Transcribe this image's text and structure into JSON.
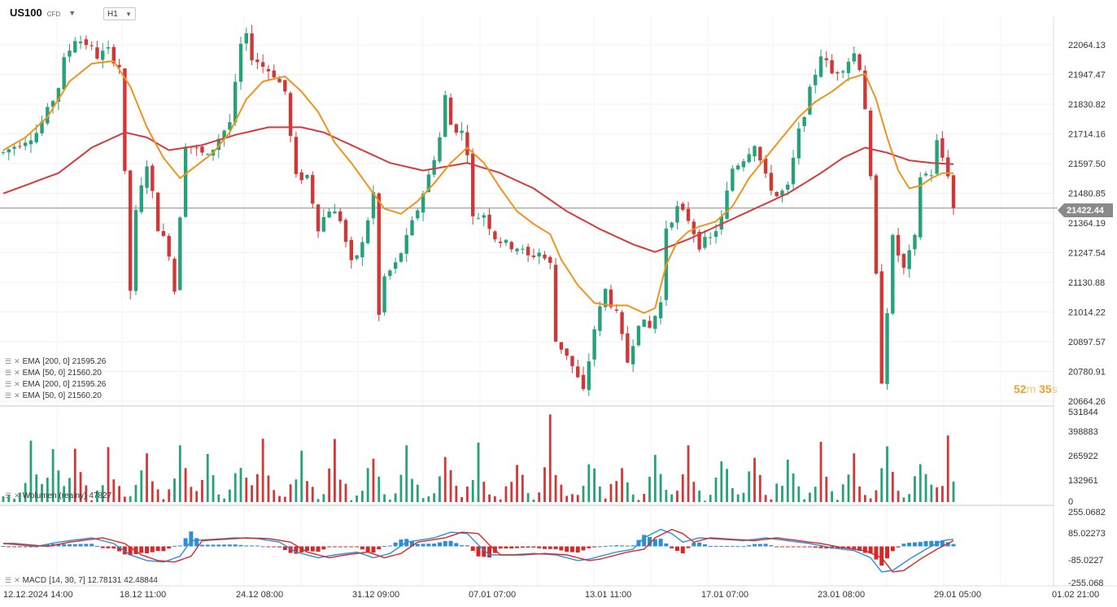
{
  "header": {
    "symbol": "US100",
    "symbol_type": "CFD",
    "timeframe": "H1"
  },
  "indicators": [
    {
      "label": "EMA",
      "params": "[200,  0]",
      "value": "21595.26"
    },
    {
      "label": "EMA",
      "params": "[50,  0]",
      "value": "21560.20"
    },
    {
      "label": "EMA",
      "params": "[200,  0]",
      "value": "21595.26"
    },
    {
      "label": "EMA",
      "params": "[50,  0]",
      "value": "21560.20"
    }
  ],
  "volume_legend": {
    "label": "Wolumen (realny)",
    "value": "47827"
  },
  "macd_legend": {
    "label": "MACD",
    "params": "[14, 30, 7]",
    "value1": "12.78131",
    "value2": "42.48844"
  },
  "timer": {
    "minutes": "52",
    "m": "m",
    "seconds": "35",
    "s": "s"
  },
  "current_price": "21422.44",
  "colors": {
    "up": "#26a17b",
    "down": "#d03838",
    "ema200": "#d63b3b",
    "ema50": "#f0931e",
    "macd_blue": "#2a8fd6",
    "macd_red": "#d62828"
  },
  "chart_data": {
    "type": "candlestick",
    "price_axis_ticks": [
      "22064.13",
      "21947.47",
      "21830.82",
      "21714.16",
      "21597.50",
      "21480.85",
      "21364.19",
      "21247.54",
      "21130.88",
      "21014.22",
      "20897.57",
      "20780.91",
      "20664.26"
    ],
    "volume_axis_ticks": [
      "531844",
      "398883",
      "265922",
      "132961",
      "0"
    ],
    "macd_axis_ticks": [
      "255.0682",
      "85.02273",
      "-85.0227",
      "-255.068"
    ],
    "time_axis_labels": [
      "12.12.2024  14:00",
      "18.12  11:00",
      "24.12  08:00",
      "31.12  09:00",
      "07.01  07:00",
      "13.01  11:00",
      "17.01  07:00",
      "23.01  08:00",
      "29.01  05:00",
      "01.02  21:00"
    ],
    "price_path": [
      [
        0,
        21640
      ],
      [
        3,
        21680
      ],
      [
        6,
        21720
      ],
      [
        8,
        21800
      ],
      [
        10,
        21900
      ],
      [
        11,
        22000
      ],
      [
        13,
        22090
      ],
      [
        15,
        22070
      ],
      [
        17,
        22020
      ],
      [
        19,
        22040
      ],
      [
        21,
        21980
      ],
      [
        22,
        21550
      ],
      [
        23,
        21100
      ],
      [
        24,
        21400
      ],
      [
        26,
        21600
      ],
      [
        28,
        21350
      ],
      [
        30,
        21250
      ],
      [
        31,
        21100
      ],
      [
        32,
        21400
      ],
      [
        33,
        21680
      ],
      [
        35,
        21650
      ],
      [
        37,
        21620
      ],
      [
        39,
        21700
      ],
      [
        41,
        21760
      ],
      [
        42,
        21900
      ],
      [
        43,
        22060
      ],
      [
        44,
        22090
      ],
      [
        45,
        22020
      ],
      [
        47,
        21980
      ],
      [
        49,
        21950
      ],
      [
        51,
        21880
      ],
      [
        52,
        21700
      ],
      [
        53,
        21540
      ],
      [
        55,
        21550
      ],
      [
        57,
        21350
      ],
      [
        59,
        21420
      ],
      [
        61,
        21380
      ],
      [
        63,
        21200
      ],
      [
        65,
        21280
      ],
      [
        67,
        21480
      ],
      [
        68,
        21000
      ],
      [
        69,
        21150
      ],
      [
        71,
        21200
      ],
      [
        73,
        21300
      ],
      [
        75,
        21420
      ],
      [
        77,
        21550
      ],
      [
        79,
        21700
      ],
      [
        80,
        21860
      ],
      [
        81,
        21750
      ],
      [
        83,
        21720
      ],
      [
        84,
        21650
      ],
      [
        85,
        21380
      ],
      [
        87,
        21400
      ],
      [
        89,
        21310
      ],
      [
        91,
        21280
      ],
      [
        93,
        21270
      ],
      [
        95,
        21230
      ],
      [
        97,
        21250
      ],
      [
        99,
        21200
      ],
      [
        100,
        20900
      ],
      [
        102,
        20850
      ],
      [
        104,
        20750
      ],
      [
        105,
        20700
      ],
      [
        107,
        20950
      ],
      [
        109,
        21100
      ],
      [
        111,
        21000
      ],
      [
        113,
        20820
      ],
      [
        115,
        20980
      ],
      [
        117,
        20950
      ],
      [
        119,
        21050
      ],
      [
        120,
        21350
      ],
      [
        122,
        21420
      ],
      [
        124,
        21380
      ],
      [
        126,
        21280
      ],
      [
        128,
        21300
      ],
      [
        130,
        21380
      ],
      [
        132,
        21580
      ],
      [
        134,
        21620
      ],
      [
        136,
        21680
      ],
      [
        138,
        21540
      ],
      [
        140,
        21470
      ],
      [
        142,
        21500
      ],
      [
        144,
        21720
      ],
      [
        146,
        21880
      ],
      [
        148,
        22030
      ],
      [
        150,
        21950
      ],
      [
        152,
        21980
      ],
      [
        154,
        22030
      ],
      [
        155,
        21980
      ],
      [
        156,
        21820
      ],
      [
        157,
        21530
      ],
      [
        158,
        21150
      ],
      [
        159,
        20750
      ],
      [
        161,
        21300
      ],
      [
        163,
        21180
      ],
      [
        165,
        21300
      ],
      [
        166,
        21550
      ],
      [
        168,
        21560
      ],
      [
        169,
        21680
      ],
      [
        171,
        21560
      ],
      [
        172,
        21422
      ]
    ],
    "ema50_path": [
      [
        0,
        21650
      ],
      [
        4,
        21700
      ],
      [
        8,
        21780
      ],
      [
        12,
        21920
      ],
      [
        16,
        21990
      ],
      [
        20,
        22000
      ],
      [
        23,
        21900
      ],
      [
        26,
        21740
      ],
      [
        29,
        21620
      ],
      [
        32,
        21540
      ],
      [
        35,
        21590
      ],
      [
        38,
        21640
      ],
      [
        41,
        21720
      ],
      [
        44,
        21850
      ],
      [
        47,
        21920
      ],
      [
        51,
        21940
      ],
      [
        54,
        21880
      ],
      [
        57,
        21800
      ],
      [
        60,
        21680
      ],
      [
        63,
        21600
      ],
      [
        66,
        21510
      ],
      [
        69,
        21420
      ],
      [
        72,
        21400
      ],
      [
        75,
        21450
      ],
      [
        78,
        21520
      ],
      [
        81,
        21600
      ],
      [
        84,
        21660
      ],
      [
        87,
        21600
      ],
      [
        90,
        21500
      ],
      [
        93,
        21410
      ],
      [
        96,
        21360
      ],
      [
        99,
        21320
      ],
      [
        101,
        21220
      ],
      [
        104,
        21120
      ],
      [
        107,
        21050
      ],
      [
        110,
        21040
      ],
      [
        113,
        21040
      ],
      [
        116,
        21010
      ],
      [
        118,
        21030
      ],
      [
        120,
        21200
      ],
      [
        122,
        21290
      ],
      [
        124,
        21330
      ],
      [
        126,
        21350
      ],
      [
        129,
        21370
      ],
      [
        132,
        21430
      ],
      [
        135,
        21540
      ],
      [
        138,
        21620
      ],
      [
        141,
        21700
      ],
      [
        144,
        21780
      ],
      [
        147,
        21840
      ],
      [
        150,
        21880
      ],
      [
        153,
        21930
      ],
      [
        156,
        21950
      ],
      [
        158,
        21850
      ],
      [
        160,
        21700
      ],
      [
        162,
        21570
      ],
      [
        164,
        21500
      ],
      [
        166,
        21510
      ],
      [
        168,
        21540
      ],
      [
        170,
        21560
      ],
      [
        172,
        21560
      ]
    ],
    "ema200_path": [
      [
        0,
        21480
      ],
      [
        10,
        21560
      ],
      [
        16,
        21660
      ],
      [
        22,
        21720
      ],
      [
        26,
        21700
      ],
      [
        30,
        21650
      ],
      [
        36,
        21670
      ],
      [
        42,
        21710
      ],
      [
        48,
        21740
      ],
      [
        54,
        21740
      ],
      [
        58,
        21720
      ],
      [
        64,
        21660
      ],
      [
        70,
        21600
      ],
      [
        76,
        21570
      ],
      [
        84,
        21600
      ],
      [
        90,
        21560
      ],
      [
        96,
        21500
      ],
      [
        102,
        21410
      ],
      [
        108,
        21340
      ],
      [
        114,
        21280
      ],
      [
        118,
        21250
      ],
      [
        124,
        21300
      ],
      [
        130,
        21360
      ],
      [
        136,
        21420
      ],
      [
        142,
        21480
      ],
      [
        148,
        21560
      ],
      [
        152,
        21620
      ],
      [
        156,
        21660
      ],
      [
        160,
        21640
      ],
      [
        164,
        21610
      ],
      [
        168,
        21600
      ],
      [
        172,
        21595
      ]
    ],
    "volume_spikes": [
      5,
      9,
      13,
      19,
      26,
      32,
      37,
      43,
      47,
      54,
      60,
      67,
      73,
      80,
      86,
      93,
      99,
      106,
      112,
      118,
      124,
      130,
      136,
      142,
      148,
      154,
      160,
      166,
      171
    ],
    "macd_path": [
      [
        0,
        20
      ],
      [
        6,
        0
      ],
      [
        10,
        30
      ],
      [
        16,
        60
      ],
      [
        20,
        20
      ],
      [
        23,
        -60
      ],
      [
        26,
        -100
      ],
      [
        29,
        -110
      ],
      [
        32,
        -70
      ],
      [
        34,
        40
      ],
      [
        38,
        50
      ],
      [
        42,
        60
      ],
      [
        46,
        55
      ],
      [
        50,
        30
      ],
      [
        53,
        -40
      ],
      [
        57,
        -80
      ],
      [
        60,
        -60
      ],
      [
        64,
        -40
      ],
      [
        67,
        -80
      ],
      [
        70,
        -50
      ],
      [
        73,
        30
      ],
      [
        78,
        60
      ],
      [
        81,
        100
      ],
      [
        84,
        90
      ],
      [
        86,
        10
      ],
      [
        88,
        -60
      ],
      [
        92,
        -60
      ],
      [
        96,
        -50
      ],
      [
        100,
        -60
      ],
      [
        104,
        -100
      ],
      [
        106,
        -90
      ],
      [
        108,
        -70
      ],
      [
        111,
        -40
      ],
      [
        114,
        -20
      ],
      [
        116,
        60
      ],
      [
        119,
        120
      ],
      [
        121,
        90
      ],
      [
        123,
        30
      ],
      [
        126,
        60
      ],
      [
        130,
        50
      ],
      [
        134,
        40
      ],
      [
        138,
        60
      ],
      [
        142,
        40
      ],
      [
        146,
        20
      ],
      [
        150,
        -10
      ],
      [
        154,
        -30
      ],
      [
        157,
        -80
      ],
      [
        159,
        -180
      ],
      [
        161,
        -170
      ],
      [
        164,
        -90
      ],
      [
        167,
        -20
      ],
      [
        170,
        40
      ],
      [
        172,
        50
      ]
    ]
  }
}
